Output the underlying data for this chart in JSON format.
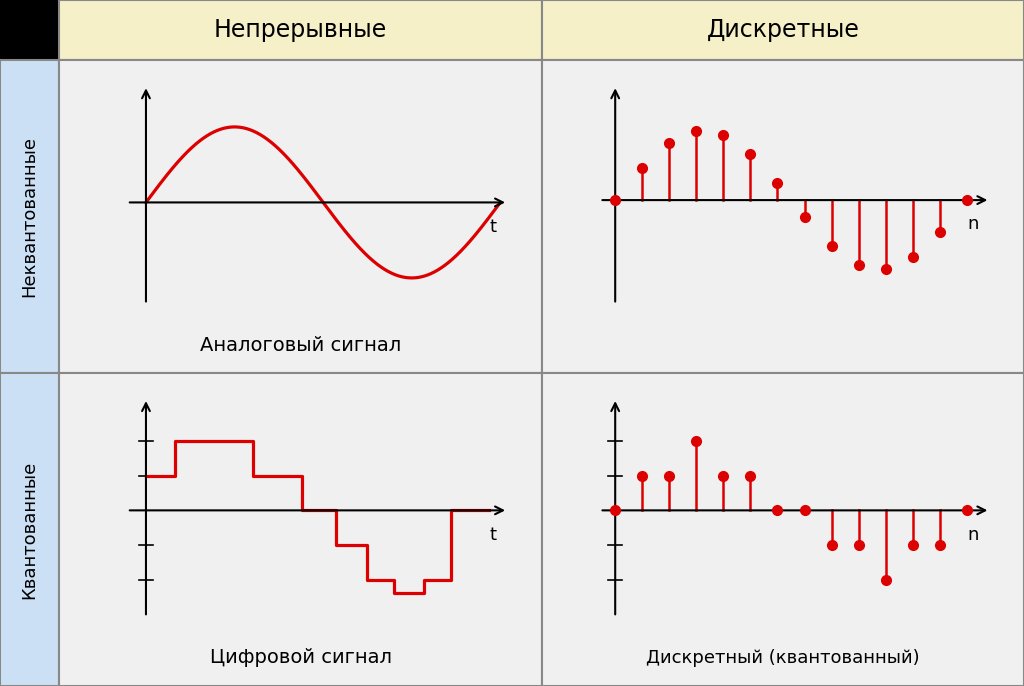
{
  "col_header_bg": "#f5f0c8",
  "row_header_bg": "#cce0f5",
  "cell_bg": "#f0f0f0",
  "border_color": "#888888",
  "signal_color": "#dd0000",
  "text_color": "#000000",
  "col_headers": [
    "Непрерывные",
    "Дискретные"
  ],
  "row_headers": [
    "Неквантованные",
    "Квантованные"
  ],
  "cell_labels": [
    [
      "Аналоговый сигнал",
      ""
    ],
    [
      "Цифровой сигнал",
      "Дискретный (квантованный)"
    ]
  ],
  "stair_t": [
    0.5,
    1.3,
    1.3,
    2.1,
    2.1,
    3.2,
    3.2,
    4.5,
    4.5,
    5.5,
    5.5,
    6.5,
    6.5,
    7.2,
    7.2,
    7.9,
    7.9,
    8.5,
    8.5,
    9.5
  ],
  "stair_y": [
    0.6,
    0.6,
    1.2,
    1.2,
    1.2,
    1.2,
    0.6,
    0.6,
    0.0,
    0.0,
    -0.6,
    -0.6,
    -1.2,
    -1.2,
    -1.5,
    -1.5,
    -1.2,
    -1.2,
    0.0,
    0.0
  ],
  "n_samples": 14
}
